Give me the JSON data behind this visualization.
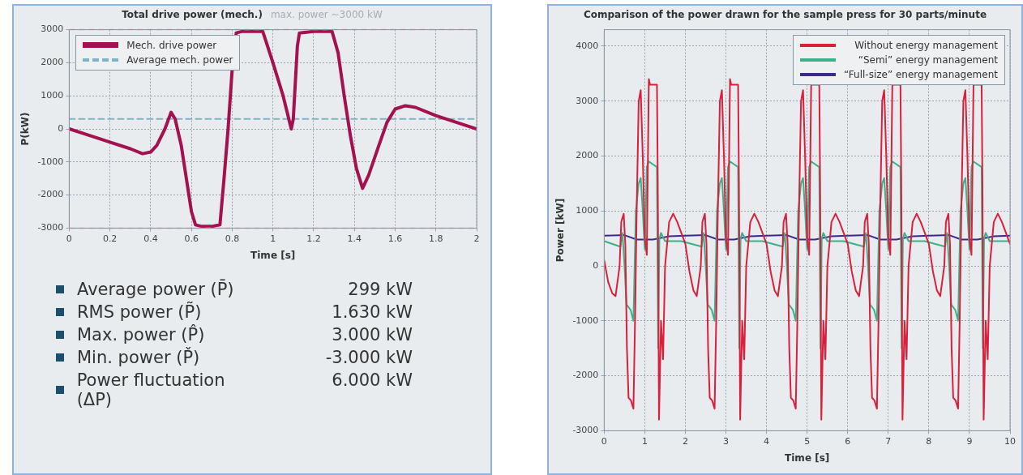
{
  "chart_data": [
    {
      "type": "line",
      "title": "Total drive power (mech.)",
      "subtitle": "max. power ~3000 kW",
      "xlabel": "Time [s]",
      "ylabel": "P(kW)",
      "xlim": [
        0,
        2
      ],
      "ylim": [
        -3000,
        3000
      ],
      "xticks": [
        0,
        0.2,
        0.4,
        0.6,
        0.8,
        1,
        1.2,
        1.4,
        1.6,
        1.8,
        2
      ],
      "yticks": [
        -3000,
        -2000,
        -1000,
        0,
        1000,
        2000,
        3000
      ],
      "grid": true,
      "legend": "top left",
      "marker": "none",
      "series": [
        {
          "name": "Mech. drive power",
          "color": "#a3124e",
          "line_style": "solid",
          "x": [
            0,
            0.1,
            0.2,
            0.3,
            0.36,
            0.4,
            0.43,
            0.47,
            0.5,
            0.52,
            0.55,
            0.6,
            0.62,
            0.65,
            0.7,
            0.74,
            0.76,
            0.78,
            0.8,
            0.82,
            0.85,
            0.95,
            1,
            1.05,
            1.09,
            1.1,
            1.12,
            1.13,
            1.2,
            1.29,
            1.32,
            1.35,
            1.38,
            1.41,
            1.44,
            1.47,
            1.52,
            1.56,
            1.6,
            1.65,
            1.7,
            1.8,
            1.9,
            2
          ],
          "values": [
            0,
            -200,
            -400,
            -600,
            -750,
            -700,
            -500,
            0,
            500,
            300,
            -500,
            -2500,
            -2900,
            -2950,
            -2950,
            -2900,
            -1500,
            0,
            1800,
            2900,
            2950,
            2950,
            2000,
            1000,
            0,
            300,
            2500,
            2900,
            2950,
            2950,
            2300,
            1000,
            -200,
            -1200,
            -1800,
            -1400,
            -500,
            200,
            600,
            700,
            650,
            400,
            200,
            0
          ]
        },
        {
          "name": "Average mech. power",
          "color": "#7fb3c8",
          "line_style": "dashed",
          "x": [
            0,
            2
          ],
          "values": [
            299,
            299
          ]
        }
      ],
      "ref_lines": [
        {
          "axis": "y",
          "value": 3000,
          "color": "#e3a6b8",
          "line_style": "dashed"
        },
        {
          "axis": "y",
          "value": -3000,
          "color": "#e3a6b8",
          "line_style": "dashed"
        }
      ],
      "annotations": [
        "Average power (P̄)",
        "299 kW",
        "RMS power (P̃)",
        "1.630 kW",
        "Max. power (P̂)",
        "3.000 kW",
        "Min. power (P̌)",
        "-3.000 kW",
        "Power fluctuation (ΔP)",
        "6.000 kW"
      ]
    },
    {
      "type": "line",
      "title": "Comparison of the power drawn for the sample press for 30 parts/minute",
      "xlabel": "Time [s]",
      "ylabel": "Power [kW]",
      "xlim": [
        0,
        10
      ],
      "ylim": [
        -3000,
        4300
      ],
      "xticks": [
        0,
        1,
        2,
        3,
        4,
        5,
        6,
        7,
        8,
        9,
        10
      ],
      "yticks": [
        -3000,
        -2000,
        -1000,
        0,
        1000,
        2000,
        3000,
        4000
      ],
      "grid": true,
      "legend": "top right",
      "marker": "none",
      "series": [
        {
          "name": "Without energy management",
          "color": "#d8203c",
          "x": [
            0,
            0.1,
            0.2,
            0.28,
            0.38,
            0.42,
            0.48,
            0.52,
            0.56,
            0.6,
            0.66,
            0.72,
            0.76,
            0.8,
            0.85,
            0.9,
            0.95,
            1,
            1.05,
            1.1,
            1.13,
            1.3,
            1.32,
            1.35,
            1.4,
            1.45,
            1.5,
            1.6,
            1.7,
            1.8,
            1.9,
            2,
            2.1,
            2.2,
            2.28,
            2.38,
            2.42,
            2.48,
            2.52,
            2.56,
            2.6,
            2.66,
            2.72,
            2.76,
            2.8,
            2.85,
            2.9,
            2.95,
            3,
            3.05,
            3.1,
            3.13,
            3.3,
            3.32,
            3.35,
            3.4,
            3.45,
            3.5,
            3.6,
            3.7,
            3.8,
            3.9,
            4,
            4.1,
            4.2,
            4.28,
            4.38,
            4.42,
            4.48,
            4.52,
            4.56,
            4.6,
            4.66,
            4.72,
            4.76,
            4.8,
            4.85,
            4.9,
            4.95,
            5,
            5.05,
            5.1,
            5.13,
            5.3,
            5.32,
            5.35,
            5.4,
            5.45,
            5.5,
            5.6,
            5.7,
            5.8,
            5.9,
            6,
            6.1,
            6.2,
            6.28,
            6.38,
            6.42,
            6.48,
            6.52,
            6.56,
            6.6,
            6.66,
            6.72,
            6.76,
            6.8,
            6.85,
            6.9,
            6.95,
            7,
            7.05,
            7.1,
            7.13,
            7.3,
            7.32,
            7.35,
            7.4,
            7.45,
            7.5,
            7.6,
            7.7,
            7.8,
            7.9,
            8,
            8.1,
            8.2,
            8.28,
            8.38,
            8.42,
            8.48,
            8.52,
            8.56,
            8.6,
            8.66,
            8.72,
            8.76,
            8.8,
            8.85,
            8.9,
            8.95,
            9,
            9.05,
            9.1,
            9.13,
            9.3,
            9.32,
            9.35,
            9.4,
            9.45,
            9.5,
            9.6,
            9.7,
            9.8,
            9.9,
            10
          ],
          "values": [
            100,
            -300,
            -500,
            -550,
            0,
            800,
            950,
            400,
            -1500,
            -2400,
            -2450,
            -2600,
            -1000,
            1000,
            3000,
            3200,
            2000,
            500,
            200,
            3400,
            3300,
            3300,
            1500,
            -2800,
            -1000,
            -1700,
            0,
            800,
            950,
            800,
            600,
            400,
            -100,
            -450,
            -550,
            0,
            800,
            950,
            400,
            -1500,
            -2400,
            -2450,
            -2600,
            -1000,
            1000,
            3000,
            3200,
            2000,
            500,
            200,
            3400,
            3300,
            3300,
            1500,
            -2800,
            -1000,
            -1700,
            0,
            800,
            950,
            800,
            600,
            400,
            -100,
            -450,
            -550,
            0,
            800,
            950,
            400,
            -1500,
            -2400,
            -2450,
            -2600,
            -1000,
            1000,
            3000,
            3200,
            2000,
            500,
            200,
            3300,
            3300,
            3300,
            1500,
            -2800,
            -1000,
            -1700,
            0,
            800,
            950,
            800,
            600,
            400,
            -100,
            -450,
            -550,
            0,
            800,
            950,
            400,
            -1500,
            -2400,
            -2450,
            -2600,
            -1000,
            1000,
            3000,
            3200,
            2000,
            500,
            200,
            3300,
            3300,
            3300,
            1500,
            -2800,
            -1000,
            -1700,
            0,
            800,
            950,
            800,
            600,
            400,
            -100,
            -450,
            -550,
            0,
            800,
            950,
            400,
            -1500,
            -2400,
            -2450,
            -2600,
            -1000,
            1000,
            3000,
            3200,
            2000,
            500,
            200,
            3300,
            3300,
            3300,
            1500,
            -2800,
            -1000,
            -1700,
            0,
            800,
            950,
            800,
            600,
            400
          ]
        },
        {
          "name": "“Semi” energy management",
          "color": "#3cb08a",
          "x": [
            0,
            0.4,
            0.45,
            0.5,
            0.55,
            0.65,
            0.72,
            0.75,
            0.78,
            0.85,
            0.9,
            0.95,
            1,
            1.05,
            1.1,
            1.3,
            1.33,
            1.36,
            1.4,
            1.5,
            1.9,
            2.4,
            2.45,
            2.5,
            2.55,
            2.65,
            2.72,
            2.75,
            2.78,
            2.85,
            2.9,
            2.95,
            3,
            3.05,
            3.1,
            3.3,
            3.33,
            3.36,
            3.4,
            3.5,
            3.9,
            4.4,
            4.45,
            4.5,
            4.55,
            4.65,
            4.72,
            4.75,
            4.78,
            4.85,
            4.9,
            4.95,
            5,
            5.05,
            5.1,
            5.3,
            5.33,
            5.36,
            5.4,
            5.5,
            5.9,
            6.4,
            6.45,
            6.5,
            6.55,
            6.65,
            6.72,
            6.75,
            6.78,
            6.85,
            6.9,
            6.95,
            7,
            7.05,
            7.1,
            7.3,
            7.33,
            7.36,
            7.4,
            7.5,
            7.9,
            8.4,
            8.45,
            8.5,
            8.55,
            8.65,
            8.72,
            8.75,
            8.78,
            8.85,
            8.9,
            8.95,
            9,
            9.05,
            9.1,
            9.3,
            9.33,
            9.36,
            9.4,
            9.5,
            10
          ],
          "values": [
            450,
            350,
            600,
            0,
            -700,
            -800,
            -1000,
            0,
            1000,
            1500,
            1600,
            1000,
            300,
            1800,
            1900,
            1800,
            -1500,
            500,
            600,
            450,
            450,
            350,
            600,
            0,
            -700,
            -800,
            -1000,
            0,
            1000,
            1500,
            1600,
            1000,
            300,
            1800,
            1900,
            1800,
            -1500,
            500,
            600,
            450,
            450,
            350,
            600,
            0,
            -700,
            -800,
            -1000,
            0,
            1000,
            1500,
            1600,
            1000,
            300,
            1800,
            1900,
            1800,
            -1500,
            500,
            600,
            450,
            450,
            350,
            600,
            0,
            -700,
            -800,
            -1000,
            0,
            1000,
            1500,
            1600,
            1000,
            300,
            1800,
            1900,
            1800,
            -1500,
            500,
            600,
            450,
            450,
            350,
            600,
            0,
            -700,
            -800,
            -1000,
            0,
            1000,
            1500,
            1600,
            1000,
            300,
            1800,
            1900,
            1800,
            -1500,
            500,
            600,
            450,
            450
          ]
        },
        {
          "name": "“Full-size” energy management",
          "color": "#3b2a8c",
          "x": [
            0,
            0.5,
            0.8,
            1.2,
            1.6,
            2,
            2.5,
            2.8,
            3.2,
            3.6,
            4,
            4.5,
            4.8,
            5.2,
            5.6,
            6,
            6.5,
            6.8,
            7.2,
            7.6,
            8,
            8.5,
            8.8,
            9.2,
            9.6,
            10
          ],
          "values": [
            550,
            560,
            480,
            480,
            540,
            550,
            560,
            480,
            480,
            540,
            550,
            560,
            480,
            480,
            540,
            550,
            560,
            480,
            480,
            540,
            550,
            560,
            480,
            480,
            540,
            550
          ]
        }
      ]
    }
  ]
}
